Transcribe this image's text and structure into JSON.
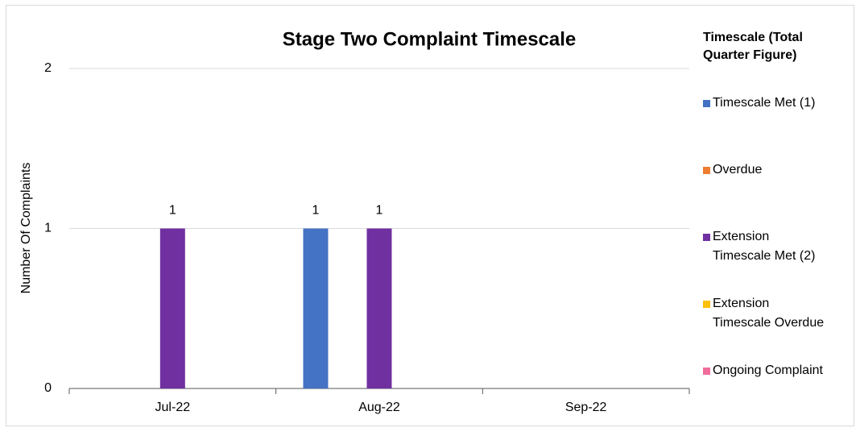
{
  "chart_data": {
    "type": "bar",
    "title": "Stage Two Complaint Timescale",
    "y_label": "Number Of Complaints",
    "legend_title": "Timescale (Total Quarter Figure)",
    "legend": "right",
    "categories": [
      "Jul-22",
      "Aug-22",
      "Sep-22"
    ],
    "series": [
      {
        "name": "Timescale Met (1)",
        "color": "#4472c4",
        "values": [
          0,
          1,
          0
        ]
      },
      {
        "name": "Overdue",
        "color": "#ed7d31",
        "values": [
          0,
          0,
          0
        ]
      },
      {
        "name": "Extension Timescale Met (2)",
        "color": "#7030a0",
        "values": [
          1,
          1,
          0
        ]
      },
      {
        "name": "Extension Timescale Overdue",
        "color": "#ffc000",
        "values": [
          0,
          0,
          0
        ]
      },
      {
        "name": "Ongoing Complaint",
        "color": "#f06c9b",
        "values": [
          0,
          0,
          0
        ]
      }
    ],
    "ylim": [
      0,
      2
    ],
    "yticks": [
      0,
      1,
      2
    ],
    "grid": true
  }
}
